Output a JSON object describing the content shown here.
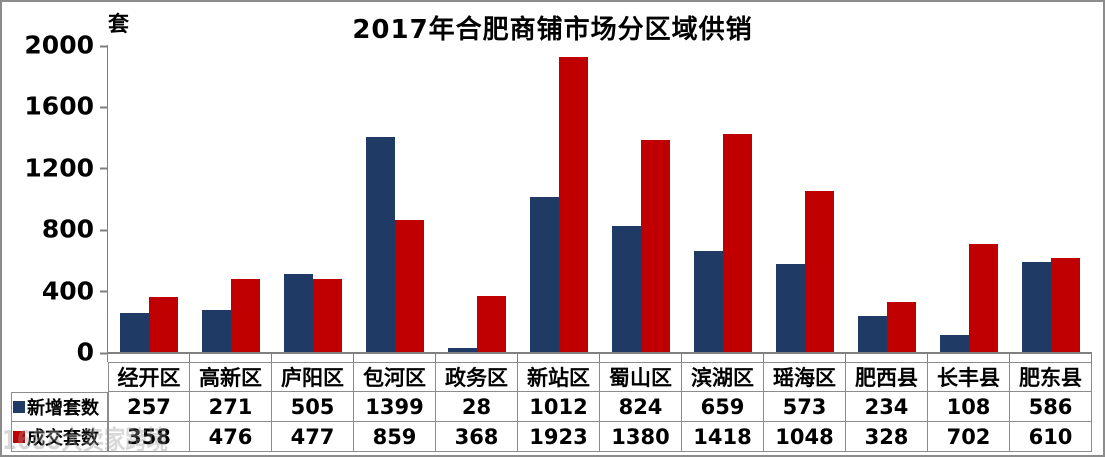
{
  "chart_data": {
    "type": "bar",
    "title": "2017年合肥商铺市场分区域供销",
    "unit_label": "套",
    "categories": [
      "经开区",
      "高新区",
      "庐阳区",
      "包河区",
      "政务区",
      "新站区",
      "蜀山区",
      "滨湖区",
      "瑶海区",
      "肥西县",
      "长丰县",
      "肥东县"
    ],
    "series": [
      {
        "name": "新增套数",
        "color": "#1F3A64",
        "values": [
          257,
          271,
          505,
          1399,
          28,
          1012,
          824,
          659,
          573,
          234,
          108,
          586
        ]
      },
      {
        "name": "成交套数",
        "color": "#C00000",
        "values": [
          358,
          476,
          477,
          859,
          368,
          1923,
          1380,
          1418,
          1048,
          328,
          702,
          610
        ]
      }
    ],
    "ylim": [
      0,
      2000
    ],
    "yticks": [
      0,
      400,
      800,
      1200,
      1600,
      2000
    ],
    "grid": false,
    "legend_position": "table-left"
  },
  "watermark": {
    "text": "1688大卖家跨境"
  },
  "colors": {
    "bar_new": "#1F3A64",
    "bar_sold": "#C00000",
    "axis": "#808080",
    "table_border": "#8C8C8C",
    "text": "#000000",
    "background": "#FFFFFF"
  }
}
